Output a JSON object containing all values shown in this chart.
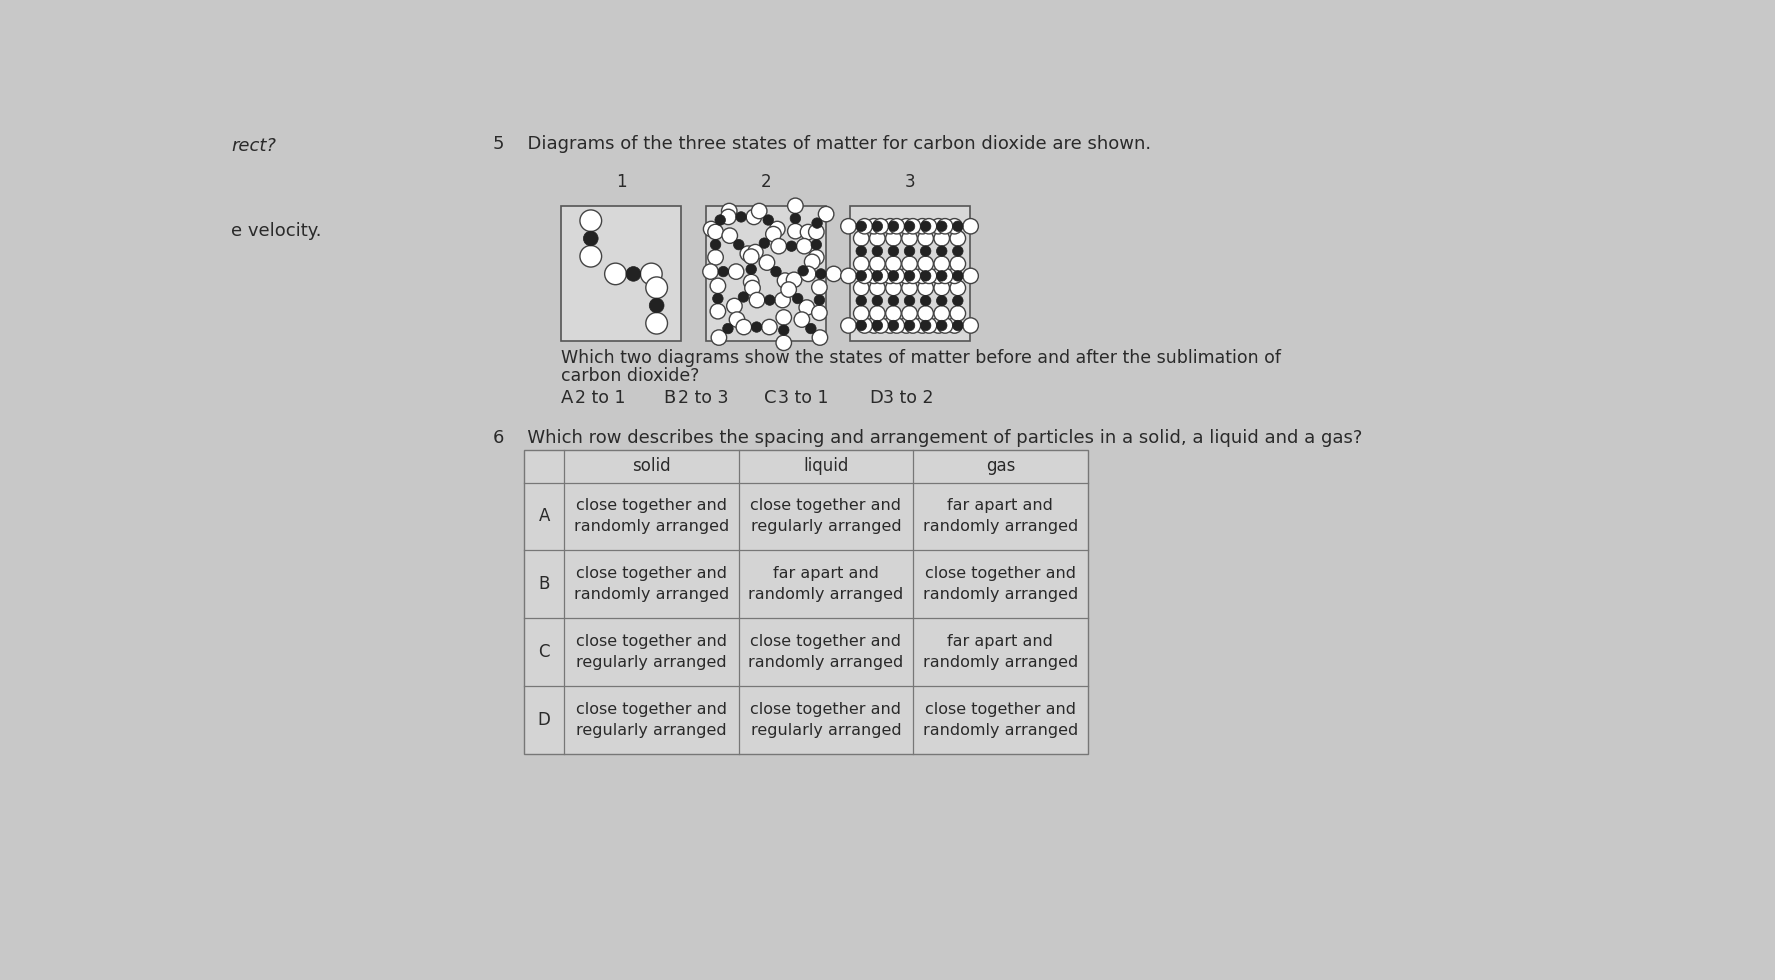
{
  "bg_color": "#c8c8c8",
  "text_color": "#2a2a2a",
  "title_q5": "5    Diagrams of the three states of matter for carbon dioxide are shown.",
  "diagram_labels": [
    "1",
    "2",
    "3"
  ],
  "question_text_line1": "Which two diagrams show the states of matter before and after the sublimation of",
  "question_text_line2": "carbon dioxide?",
  "answers_q5_labels": [
    "A",
    "B",
    "C",
    "D"
  ],
  "answers_q5_vals": [
    "2 to 1",
    "2 to 3",
    "3 to 1",
    "3 to 2"
  ],
  "title_q6": "6    Which row describes the spacing and arrangement of particles in a solid, a liquid and a gas?",
  "table_headers": [
    "",
    "solid",
    "liquid",
    "gas"
  ],
  "table_rows": [
    [
      "A",
      "close together and\nrandomly arranged",
      "close together and\nregularly arranged",
      "far apart and\nrandomly arranged"
    ],
    [
      "B",
      "close together and\nrandomly arranged",
      "far apart and\nrandomly arranged",
      "close together and\nrandomly arranged"
    ],
    [
      "C",
      "close together and\nregularly arranged",
      "close together and\nrandomly arranged",
      "far apart and\nrandomly arranged"
    ],
    [
      "D",
      "close together and\nregularly arranged",
      "close together and\nregularly arranged",
      "close together and\nrandomly arranged"
    ]
  ]
}
